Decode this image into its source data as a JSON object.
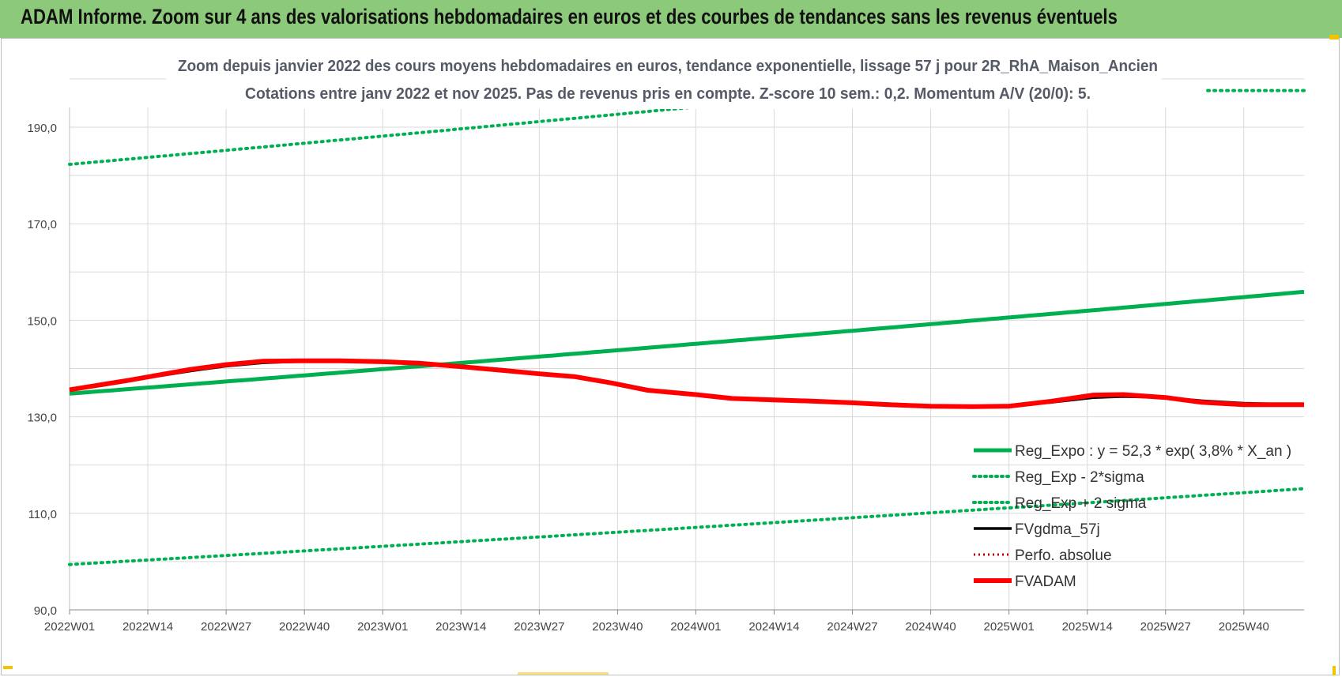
{
  "header": {
    "banner_title": "ADAM Informe. Zoom sur 4 ans des valorisations hebdomadaires en euros et des courbes de tendances sans les revenus éventuels"
  },
  "colors": {
    "banner_bg": "#8cc97a",
    "trend_green": "#00b050",
    "fvgdma_black": "#000000",
    "fvadam_red": "#ff0000",
    "perfo_red": "#c00000",
    "grid": "#d9d9d9"
  },
  "chart_data": {
    "type": "line",
    "title_line1": "Zoom depuis janvier 2022 des cours moyens hebdomadaires en euros, tendance exponentielle, lissage 57 j pour 2R_RhA_Maison_Ancien",
    "title_line2": "Cotations entre janv 2022 et nov 2025. Pas de revenus pris en compte. Z-score 10 sem.: 0,2. Momentum A/V (20/0): 5.",
    "xlabel": "",
    "ylabel": "",
    "x_tick_labels": [
      "2022W01",
      "2022W14",
      "2022W27",
      "2022W40",
      "2023W01",
      "2023W14",
      "2023W27",
      "2023W40",
      "2024W01",
      "2024W14",
      "2024W27",
      "2024W40",
      "2025W01",
      "2025W14",
      "2025W27",
      "2025W40"
    ],
    "y_tick_labels": [
      "90,0",
      "110,0",
      "130,0",
      "150,0",
      "170,0",
      "190,0"
    ],
    "ylim": [
      90,
      200
    ],
    "x_range_weeks": [
      0,
      205
    ],
    "grid": true,
    "legend_position": "bottom-right",
    "legend": [
      {
        "name": "Reg_Expo : y = 52,3 * exp( 3,8% *  X_an )",
        "style": "solid-thick-green"
      },
      {
        "name": "Reg_Exp - 2*sigma",
        "style": "dotted-green"
      },
      {
        "name": "Reg_Exp + 2 sigma",
        "style": "dotted-green"
      },
      {
        "name": "FVgdma_57j",
        "style": "solid-black"
      },
      {
        "name": "Perfo. absolue",
        "style": "dotted-red"
      },
      {
        "name": "FVADAM",
        "style": "solid-thick-red"
      }
    ],
    "series": [
      {
        "name": "Reg_Expo : y = 52,3 * exp( 3,8% *  X_an )",
        "x": [
          0,
          205
        ],
        "y": [
          134.8,
          155.9
        ],
        "curve": "exponential"
      },
      {
        "name": "Reg_Exp - 2*sigma",
        "x": [
          0,
          205
        ],
        "y": [
          99.4,
          115.1
        ],
        "curve": "exponential"
      },
      {
        "name": "Reg_Exp + 2 sigma",
        "x": [
          0,
          205
        ],
        "y": [
          182.3,
          206.5
        ],
        "curve": "exponential"
      },
      {
        "name": "FVgdma_57j",
        "x": [
          0,
          5,
          10,
          15,
          20,
          26,
          32,
          39,
          45,
          52,
          58,
          65,
          72,
          78,
          84,
          90,
          96,
          104,
          110,
          117,
          124,
          130,
          136,
          143,
          150,
          156,
          163,
          170,
          175,
          182,
          188,
          195,
          205
        ],
        "y": [
          135.5,
          136.5,
          137.5,
          138.5,
          139.5,
          140.5,
          141.2,
          141.5,
          141.5,
          141.3,
          141.0,
          140.5,
          139.8,
          139.0,
          138.2,
          137.0,
          135.5,
          134.5,
          133.8,
          133.5,
          133.3,
          133.0,
          132.7,
          132.3,
          132.2,
          132.3,
          133.0,
          134.0,
          134.2,
          134.0,
          133.3,
          132.8,
          132.5
        ]
      },
      {
        "name": "Perfo. absolue",
        "x": [
          0,
          5,
          10,
          15,
          20,
          26,
          32,
          39,
          45,
          52,
          58,
          65,
          72,
          78,
          84,
          90,
          96,
          104,
          110,
          117,
          124,
          130,
          136,
          143,
          150,
          156,
          163,
          170,
          175,
          182,
          188,
          195,
          205
        ],
        "y": [
          135.6,
          136.6,
          137.6,
          138.7,
          139.8,
          140.8,
          141.5,
          141.6,
          141.6,
          141.4,
          141.1,
          140.4,
          139.6,
          138.9,
          138.3,
          137.0,
          135.5,
          134.6,
          133.8,
          133.5,
          133.2,
          132.9,
          132.5,
          132.2,
          132.1,
          132.2,
          133.2,
          134.5,
          134.6,
          134.0,
          133.0,
          132.5,
          132.5
        ]
      },
      {
        "name": "FVADAM",
        "x": [
          0,
          5,
          10,
          15,
          20,
          26,
          32,
          39,
          45,
          52,
          58,
          65,
          72,
          78,
          84,
          90,
          96,
          104,
          110,
          117,
          124,
          130,
          136,
          143,
          150,
          156,
          163,
          170,
          175,
          182,
          188,
          195,
          205
        ],
        "y": [
          135.6,
          136.6,
          137.6,
          138.7,
          139.8,
          140.8,
          141.5,
          141.6,
          141.6,
          141.4,
          141.1,
          140.4,
          139.6,
          138.9,
          138.3,
          137.0,
          135.5,
          134.6,
          133.8,
          133.5,
          133.2,
          132.9,
          132.5,
          132.2,
          132.1,
          132.2,
          133.2,
          134.5,
          134.6,
          134.0,
          133.0,
          132.5,
          132.5
        ]
      }
    ]
  }
}
